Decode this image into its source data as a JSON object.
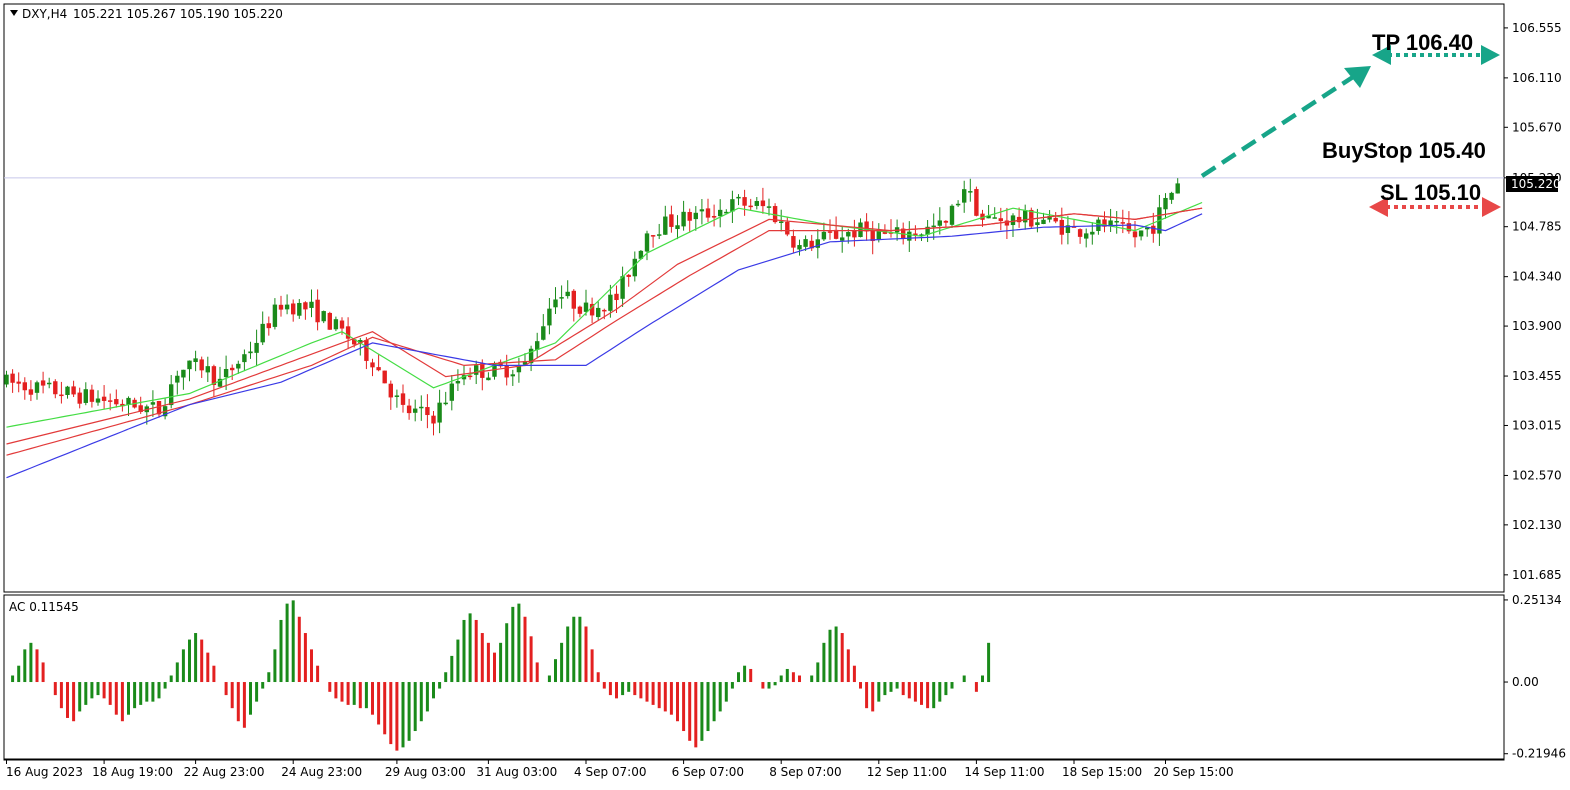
{
  "header": {
    "symbol": "DXY,H4",
    "ohlc": "105.221 105.267 105.190 105.220"
  },
  "indicator": {
    "label": "AC 0.11545",
    "y_ticks": [
      "0.25134",
      "0.00",
      "-0.21946"
    ]
  },
  "colors": {
    "bull": "#1a8a1a",
    "bear": "#e32020",
    "ma_fast": "#44dd44",
    "ma_mid": "#e23a3a",
    "ma_slow": "#3a3ae6",
    "tp_arrow": "#17a589",
    "sl_arrow": "#e84848",
    "price_line": "#c7c7ea"
  },
  "annotations": {
    "tp": "TP 106.40",
    "buystop": "BuyStop 105.40",
    "sl": "SL 105.10",
    "current_price": "105.220"
  },
  "chart_data": [
    {
      "type": "candlestick",
      "title": "DXY,H4",
      "y_ticks": [
        "106.555",
        "106.110",
        "105.670",
        "105.220",
        "104.785",
        "104.340",
        "103.900",
        "103.455",
        "103.015",
        "102.570",
        "102.130",
        "101.685"
      ],
      "x_ticks": [
        "16 Aug 2023",
        "18 Aug 19:00",
        "22 Aug 23:00",
        "24 Aug 23:00",
        "29 Aug 03:00",
        "31 Aug 03:00",
        "4 Sep 07:00",
        "6 Sep 07:00",
        "8 Sep 07:00",
        "12 Sep 11:00",
        "14 Sep 11:00",
        "18 Sep 15:00",
        "20 Sep 15:00"
      ],
      "ylim": [
        101.55,
        106.75
      ],
      "close_anchors": [
        [
          0,
          103.4
        ],
        [
          5,
          103.35
        ],
        [
          10,
          103.3
        ],
        [
          15,
          103.25
        ],
        [
          20,
          103.2
        ],
        [
          25,
          103.15
        ],
        [
          28,
          103.5
        ],
        [
          32,
          103.55
        ],
        [
          35,
          103.4
        ],
        [
          40,
          103.7
        ],
        [
          45,
          104.1
        ],
        [
          50,
          104.05
        ],
        [
          55,
          103.85
        ],
        [
          60,
          103.6
        ],
        [
          65,
          103.15
        ],
        [
          70,
          103.1
        ],
        [
          75,
          103.5
        ],
        [
          80,
          103.5
        ],
        [
          85,
          103.55
        ],
        [
          90,
          104.2
        ],
        [
          95,
          104.05
        ],
        [
          100,
          104.15
        ],
        [
          105,
          104.75
        ],
        [
          110,
          104.85
        ],
        [
          115,
          104.9
        ],
        [
          120,
          105.0
        ],
        [
          125,
          104.95
        ],
        [
          130,
          104.6
        ],
        [
          135,
          104.7
        ],
        [
          140,
          104.75
        ],
        [
          145,
          104.7
        ],
        [
          150,
          104.75
        ],
        [
          154,
          104.8
        ],
        [
          157,
          105.15
        ],
        [
          160,
          104.85
        ],
        [
          165,
          104.85
        ],
        [
          170,
          104.85
        ],
        [
          175,
          104.75
        ],
        [
          180,
          104.8
        ],
        [
          185,
          104.7
        ],
        [
          188,
          104.8
        ],
        [
          190,
          105.0
        ],
        [
          192,
          105.2
        ]
      ],
      "ma_series": [
        {
          "anchors": [
            [
              0,
              103.0
            ],
            [
              30,
              103.3
            ],
            [
              50,
              103.75
            ],
            [
              55,
              103.85
            ],
            [
              70,
              103.35
            ],
            [
              80,
              103.55
            ],
            [
              90,
              103.75
            ],
            [
              105,
              104.55
            ],
            [
              120,
              104.95
            ],
            [
              135,
              104.8
            ],
            [
              150,
              104.7
            ],
            [
              165,
              104.95
            ],
            [
              185,
              104.75
            ],
            [
              196,
              105.0
            ]
          ]
        },
        {
          "anchors": [
            [
              0,
              102.85
            ],
            [
              30,
              103.25
            ],
            [
              50,
              103.65
            ],
            [
              60,
              103.85
            ],
            [
              72,
              103.45
            ],
            [
              85,
              103.55
            ],
            [
              100,
              104.05
            ],
            [
              110,
              104.45
            ],
            [
              125,
              104.85
            ],
            [
              145,
              104.75
            ],
            [
              160,
              104.8
            ],
            [
              175,
              104.9
            ],
            [
              185,
              104.85
            ],
            [
              196,
              104.95
            ]
          ]
        },
        {
          "anchors": [
            [
              0,
              102.75
            ],
            [
              30,
              103.2
            ],
            [
              50,
              103.55
            ],
            [
              60,
              103.8
            ],
            [
              75,
              103.55
            ],
            [
              90,
              103.6
            ],
            [
              100,
              103.95
            ],
            [
              112,
              104.35
            ],
            [
              125,
              104.75
            ],
            [
              145,
              104.75
            ],
            [
              160,
              104.8
            ],
            [
              175,
              104.9
            ],
            [
              185,
              104.85
            ],
            [
              196,
              104.95
            ]
          ]
        },
        {
          "anchors": [
            [
              0,
              102.55
            ],
            [
              30,
              103.2
            ],
            [
              45,
              103.4
            ],
            [
              60,
              103.75
            ],
            [
              70,
              103.65
            ],
            [
              80,
              103.55
            ],
            [
              95,
              103.55
            ],
            [
              105,
              103.9
            ],
            [
              120,
              104.4
            ],
            [
              135,
              104.65
            ],
            [
              155,
              104.7
            ],
            [
              170,
              104.78
            ],
            [
              185,
              104.8
            ],
            [
              190,
              104.75
            ],
            [
              196,
              104.9
            ]
          ]
        }
      ]
    },
    {
      "type": "bar",
      "title": "AC 0.11545",
      "ylim": [
        -0.2295,
        0.2603
      ],
      "values": [
        0.0,
        0.02,
        0.05,
        0.1,
        0.12,
        0.1,
        0.06,
        0.0,
        -0.04,
        -0.08,
        -0.11,
        -0.12,
        -0.09,
        -0.07,
        -0.05,
        -0.04,
        -0.05,
        -0.07,
        -0.1,
        -0.12,
        -0.1,
        -0.08,
        -0.07,
        -0.06,
        -0.06,
        -0.05,
        -0.02,
        0.02,
        0.06,
        0.1,
        0.13,
        0.15,
        0.13,
        0.09,
        0.05,
        0.0,
        -0.04,
        -0.08,
        -0.12,
        -0.14,
        -0.1,
        -0.06,
        -0.02,
        0.03,
        0.1,
        0.19,
        0.24,
        0.25,
        0.2,
        0.15,
        0.1,
        0.05,
        0.0,
        -0.03,
        -0.05,
        -0.06,
        -0.07,
        -0.07,
        -0.08,
        -0.08,
        -0.1,
        -0.13,
        -0.16,
        -0.19,
        -0.21,
        -0.2,
        -0.18,
        -0.15,
        -0.12,
        -0.09,
        -0.05,
        -0.02,
        0.03,
        0.08,
        0.13,
        0.19,
        0.21,
        0.19,
        0.15,
        0.12,
        0.09,
        0.12,
        0.18,
        0.23,
        0.24,
        0.2,
        0.14,
        0.06,
        0.0,
        0.02,
        0.07,
        0.12,
        0.17,
        0.2,
        0.2,
        0.17,
        0.1,
        0.03,
        -0.02,
        -0.04,
        -0.05,
        -0.04,
        -0.03,
        -0.04,
        -0.05,
        -0.06,
        -0.07,
        -0.08,
        -0.09,
        -0.1,
        -0.12,
        -0.15,
        -0.18,
        -0.2,
        -0.18,
        -0.15,
        -0.12,
        -0.09,
        -0.06,
        -0.02,
        0.03,
        0.05,
        0.04,
        0.0,
        -0.02,
        -0.02,
        -0.01,
        0.02,
        0.04,
        0.03,
        0.02,
        0.0,
        0.02,
        0.06,
        0.12,
        0.16,
        0.17,
        0.15,
        0.1,
        0.05,
        -0.02,
        -0.08,
        -0.09,
        -0.06,
        -0.04,
        -0.03,
        -0.02,
        -0.04,
        -0.05,
        -0.06,
        -0.07,
        -0.08,
        -0.08,
        -0.06,
        -0.04,
        -0.02,
        0.0,
        0.02,
        0.0,
        -0.03,
        0.02,
        0.12
      ]
    }
  ]
}
